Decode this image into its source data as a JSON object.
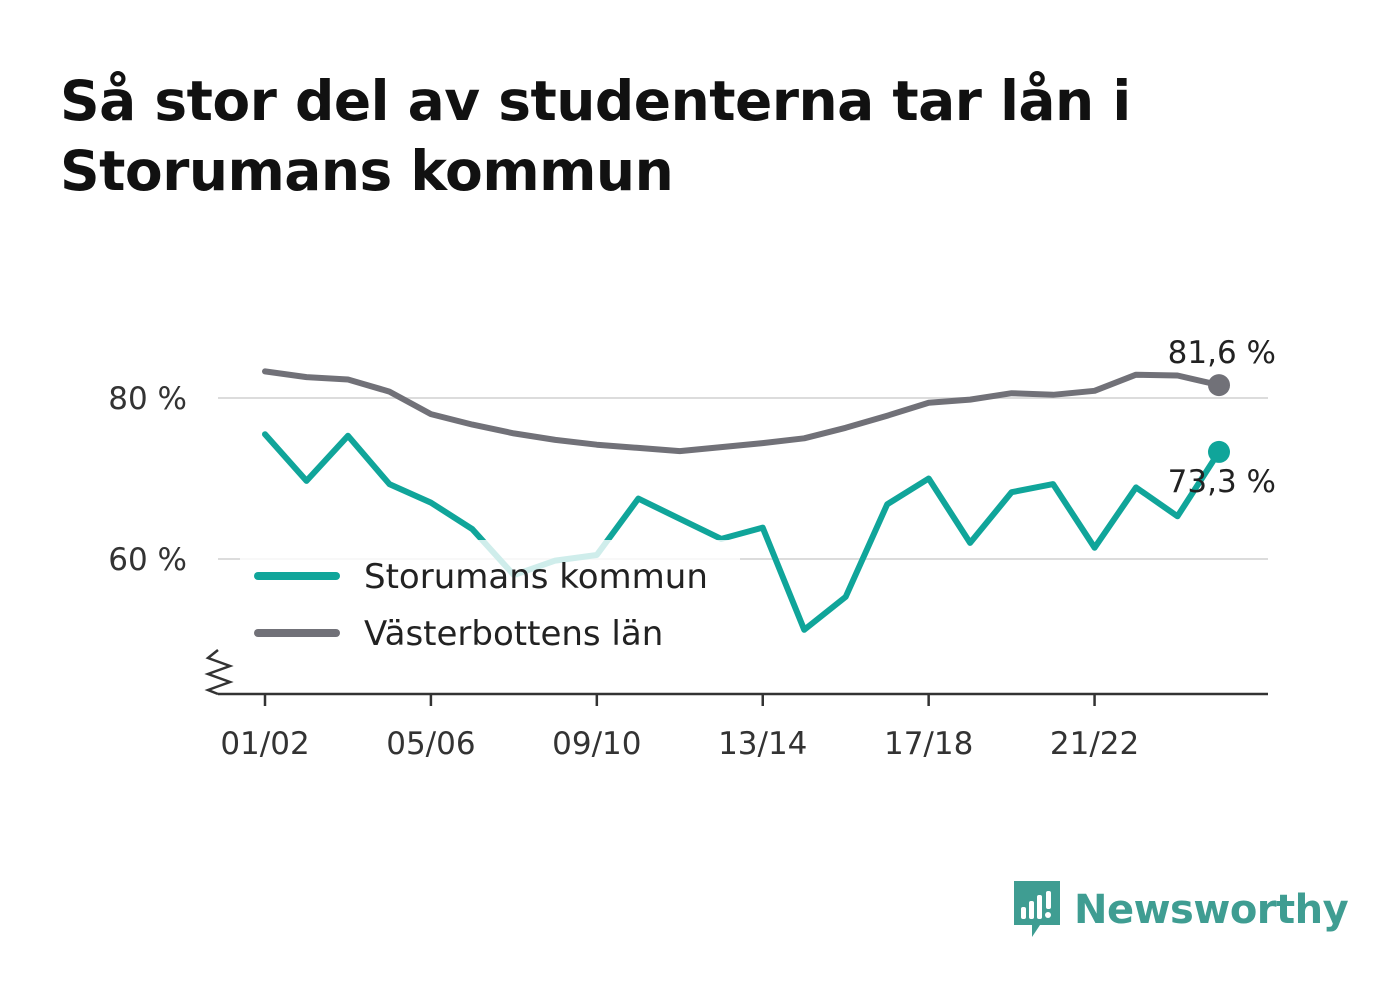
{
  "title": "Så stor del av studenterna tar lån i Storumans kommun",
  "brand": {
    "name": "Newsworthy",
    "icon": "newsworthy-logo-icon",
    "color": "#3f9d92"
  },
  "chart_data": {
    "type": "line",
    "title": "Så stor del av studenterna tar lån i Storumans kommun",
    "xlabel": "",
    "ylabel": "",
    "x_tick_labels": [
      "01/02",
      "05/06",
      "09/10",
      "13/14",
      "17/18",
      "21/22"
    ],
    "y_tick_labels": [
      "60 %",
      "80 %"
    ],
    "y_ticks": [
      60,
      80
    ],
    "ylim": [
      43.5,
      87
    ],
    "grid": "horizontal",
    "legend": "bottom-left inside plot",
    "x": [
      "01/02",
      "02/03",
      "03/04",
      "04/05",
      "05/06",
      "06/07",
      "07/08",
      "08/09",
      "09/10",
      "10/11",
      "11/12",
      "12/13",
      "13/14",
      "14/15",
      "15/16",
      "16/17",
      "17/18",
      "18/19",
      "19/20",
      "20/21",
      "21/22",
      "22/23",
      "23/24",
      "24/25"
    ],
    "series": [
      {
        "name": "Storumans kommun",
        "color": "#10a59a",
        "values": [
          75.5,
          69.7,
          75.3,
          69.3,
          67.0,
          63.7,
          58.0,
          59.8,
          60.5,
          67.5,
          65.0,
          62.5,
          63.9,
          51.2,
          55.3,
          66.8,
          70.0,
          62.0,
          68.3,
          69.3,
          61.4,
          68.9,
          65.3,
          73.3
        ]
      },
      {
        "name": "Västerbottens län",
        "color": "#717178",
        "values": [
          83.3,
          82.6,
          82.3,
          80.8,
          78.0,
          76.7,
          75.6,
          74.8,
          74.2,
          73.8,
          73.4,
          73.9,
          74.4,
          75.0,
          76.3,
          77.8,
          79.4,
          79.8,
          80.6,
          80.4,
          80.9,
          82.9,
          82.8,
          81.6
        ]
      }
    ],
    "end_labels": [
      "73,3 %",
      "81,6 %"
    ]
  }
}
